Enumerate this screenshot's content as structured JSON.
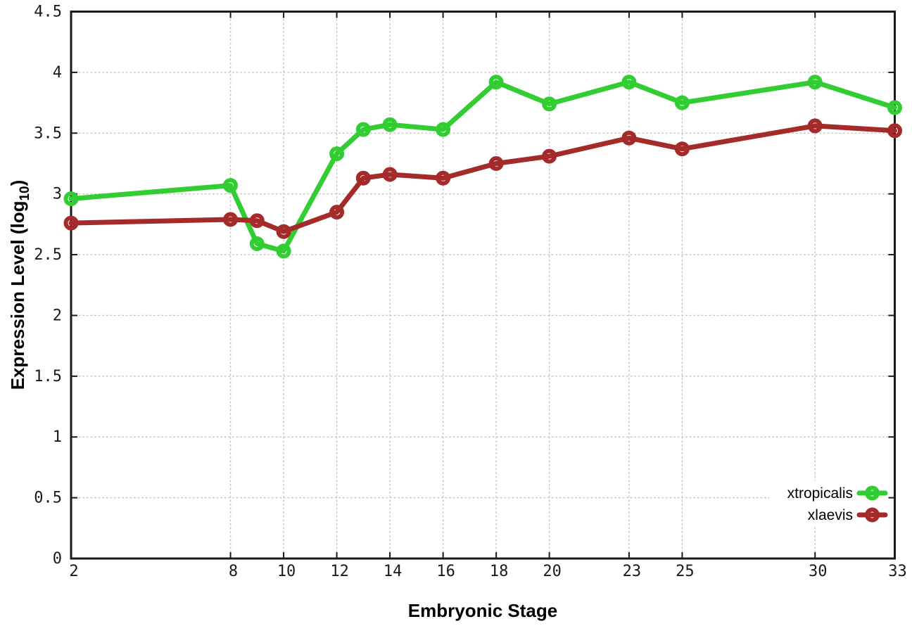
{
  "figure": {
    "background": "#ffffff"
  },
  "chart_data": {
    "type": "line",
    "title": "",
    "xlabel": "Embryonic Stage",
    "ylabel": "Expression Level (log10)",
    "ylabel_parts": {
      "main": "Expression Level (log",
      "sub": "10",
      "close": ")"
    },
    "xlim": [
      2,
      33
    ],
    "ylim": [
      0,
      4.5
    ],
    "xticks": [
      2,
      8,
      10,
      12,
      14,
      16,
      18,
      20,
      23,
      25,
      30,
      33
    ],
    "yticks": [
      0,
      0.5,
      1,
      1.5,
      2,
      2.5,
      3,
      3.5,
      4,
      4.5
    ],
    "grid": true,
    "legend_position": "inside-bottom-right",
    "x": [
      2,
      8,
      9,
      10,
      12,
      13,
      14,
      16,
      18,
      20,
      23,
      25,
      30,
      33
    ],
    "series": [
      {
        "name": "xtropicalis",
        "color": "#32cd32",
        "values": [
          2.96,
          3.07,
          2.59,
          2.53,
          3.33,
          3.53,
          3.57,
          3.53,
          3.92,
          3.74,
          3.92,
          3.75,
          3.92,
          3.71
        ]
      },
      {
        "name": "xlaevis",
        "color": "#a52a2a",
        "values": [
          2.76,
          2.79,
          2.78,
          2.69,
          2.85,
          3.13,
          3.16,
          3.13,
          3.25,
          3.31,
          3.46,
          3.37,
          3.56,
          3.52
        ]
      }
    ],
    "colors": {
      "grid": "#c2c2c2",
      "axis": "#1a1a1a",
      "tick_text": "#1a1a1a",
      "title_text": "#000000"
    }
  }
}
